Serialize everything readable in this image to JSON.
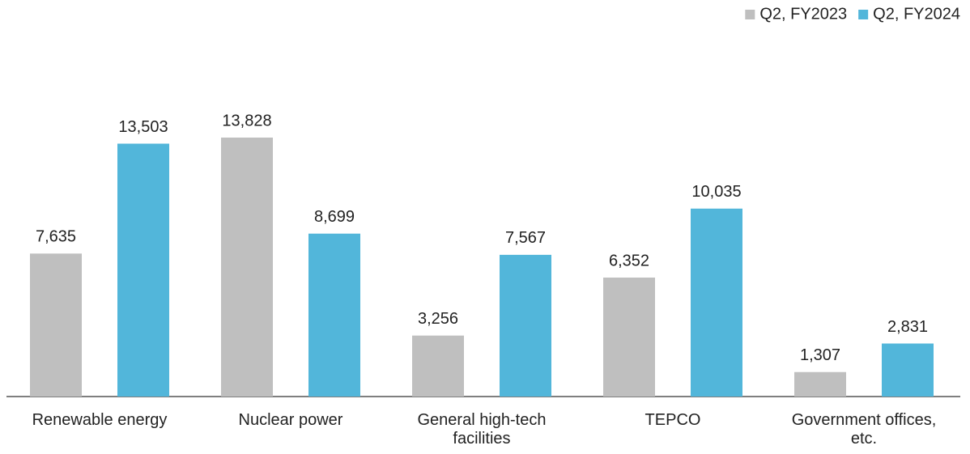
{
  "chart_data": {
    "type": "bar",
    "categories": [
      "Renewable energy",
      "Nuclear power",
      "General high-tech facilities",
      "TEPCO",
      "Government offices, etc."
    ],
    "series": [
      {
        "name": "Q2, FY2023",
        "color": "#bfbfbf",
        "values": [
          7635,
          13828,
          3256,
          6352,
          1307
        ],
        "value_labels": [
          "7,635",
          "13,828",
          "3,256",
          "6,352",
          "1,307"
        ]
      },
      {
        "name": "Q2, FY2024",
        "color": "#52b6da",
        "values": [
          13503,
          8699,
          7567,
          10035,
          2831
        ],
        "value_labels": [
          "13,503",
          "8,699",
          "7,567",
          "10,035",
          "2,831"
        ]
      }
    ],
    "legend": "top-right"
  }
}
